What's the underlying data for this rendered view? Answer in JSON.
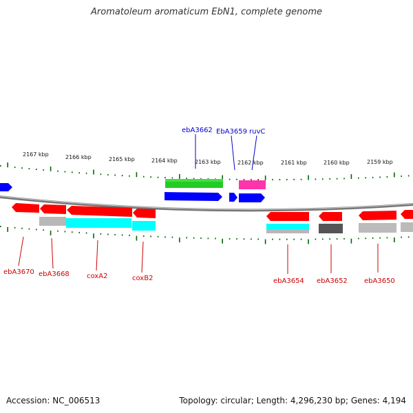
{
  "title": "Aromatoleum aromaticum EbN1, complete genome",
  "footer": {
    "accession": "Accession: NC_006513",
    "topology": "Topology: circular; Length: 4,296,230 bp; Genes: 4,194"
  },
  "colors": {
    "forward": "#0000ff",
    "reverse": "#ff0000",
    "rrna": "#00cc00",
    "trna": "#ff33aa",
    "cyan": "#00ffff",
    "gray": "#bbbbbb",
    "darkgray": "#555555",
    "tick": "#006600",
    "axis": "#777777"
  },
  "ticks": [
    {
      "label": "2167 kbp"
    },
    {
      "label": "2166 kbp"
    },
    {
      "label": "2165 kbp"
    },
    {
      "label": "2164 kbp"
    },
    {
      "label": "2163 kbp"
    },
    {
      "label": "2162 kbp"
    },
    {
      "label": "2161 kbp"
    },
    {
      "label": "2160 kbp"
    },
    {
      "label": "2159 kbp"
    }
  ],
  "top_labels": [
    {
      "name": "ebA3662"
    },
    {
      "name": "EbA3659"
    },
    {
      "name": "ruvC"
    }
  ],
  "bottom_labels": [
    {
      "name": "ebA3670"
    },
    {
      "name": "ebA3668"
    },
    {
      "name": "coxA2"
    },
    {
      "name": "coxB2"
    },
    {
      "name": "ebA3654"
    },
    {
      "name": "ebA3652"
    },
    {
      "name": "ebA3650"
    }
  ]
}
